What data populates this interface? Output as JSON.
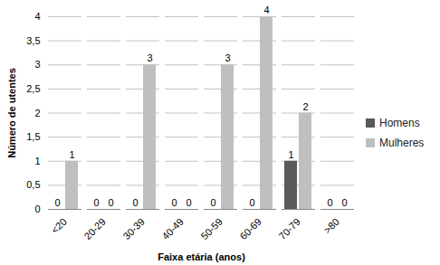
{
  "chart_data": {
    "type": "bar",
    "x_label": "Faixa etária (anos)",
    "y_label": "Número de utentes",
    "categories": [
      "<20",
      "20-29",
      "30-39",
      "40-49",
      "50-59",
      "60-69",
      "70-79",
      ">80"
    ],
    "series": [
      {
        "name": "Homens",
        "color": "#595959",
        "values": [
          0,
          0,
          0,
          0,
          0,
          0,
          1,
          0
        ]
      },
      {
        "name": "Mulheres",
        "color": "#bfbfbf",
        "values": [
          1,
          0,
          3,
          0,
          3,
          4,
          2,
          0
        ]
      }
    ],
    "ylim": [
      0,
      4
    ],
    "yticks": [
      0,
      {
        "value": 0.5,
        "label": "0,5"
      },
      1,
      {
        "value": 1.5,
        "label": "1,5"
      },
      2,
      {
        "value": 2.5,
        "label": "2,5"
      },
      3,
      {
        "value": 3.5,
        "label": "3,5"
      },
      4
    ],
    "grid": true,
    "legend": "right",
    "data_labels": true
  }
}
